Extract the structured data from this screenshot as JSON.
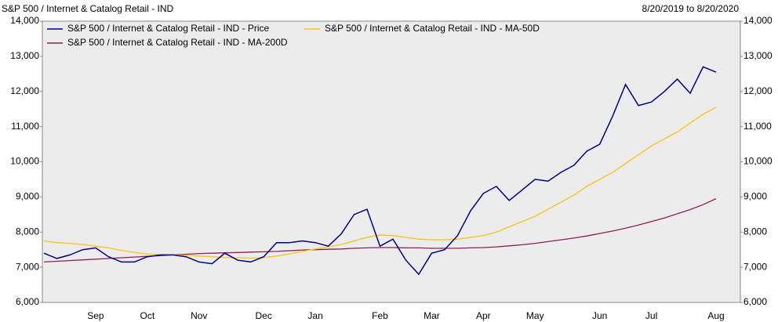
{
  "chart_data": {
    "type": "line",
    "title": "S&P 500 / Internet & Catalog Retail - IND",
    "subtitle": "8/20/2019 to 8/20/2020",
    "categories": [
      null,
      null,
      null,
      null,
      "Sep",
      null,
      null,
      null,
      "Oct",
      null,
      null,
      null,
      "Nov",
      null,
      null,
      null,
      null,
      "Dec",
      null,
      null,
      null,
      "Jan",
      null,
      null,
      null,
      null,
      "Feb",
      null,
      null,
      null,
      "Mar",
      null,
      null,
      null,
      "Apr",
      null,
      null,
      null,
      "May",
      null,
      null,
      null,
      null,
      "Jun",
      null,
      null,
      null,
      "Jul",
      null,
      null,
      null,
      null,
      "Aug"
    ],
    "series": [
      {
        "name": "S&P 500 / Internet & Catalog Retail - IND - Price",
        "color": "#000080",
        "values": [
          7400,
          7250,
          7350,
          7500,
          7550,
          7300,
          7150,
          7150,
          7300,
          7350,
          7350,
          7300,
          7150,
          7100,
          7400,
          7200,
          7150,
          7300,
          7700,
          7700,
          7750,
          7700,
          7600,
          7950,
          8500,
          8650,
          7600,
          7800,
          7200,
          6800,
          7400,
          7500,
          7900,
          8600,
          9100,
          9300,
          8900,
          9200,
          9500,
          9450,
          9700,
          9900,
          10300,
          10500,
          11300,
          12200,
          11600,
          11700,
          12000,
          12350,
          11950,
          12700,
          12550
        ]
      },
      {
        "name": "S&P 500 / Internet & Catalog Retail - IND - MA-50D",
        "color": "#f5c518",
        "values": [
          7750,
          7700,
          7680,
          7650,
          7600,
          7550,
          7480,
          7420,
          7380,
          7360,
          7350,
          7340,
          7320,
          7300,
          7280,
          7270,
          7260,
          7280,
          7320,
          7380,
          7450,
          7520,
          7580,
          7650,
          7750,
          7850,
          7920,
          7900,
          7850,
          7800,
          7780,
          7780,
          7800,
          7850,
          7900,
          8000,
          8150,
          8300,
          8450,
          8650,
          8850,
          9050,
          9300,
          9500,
          9700,
          9950,
          10200,
          10450,
          10650,
          10850,
          11100,
          11350,
          11550
        ]
      },
      {
        "name": "S&P 500 / Internet & Catalog Retail - IND - MA-200D",
        "color": "#8b2252",
        "values": [
          7150,
          7170,
          7190,
          7210,
          7230,
          7250,
          7270,
          7290,
          7310,
          7330,
          7350,
          7370,
          7390,
          7400,
          7410,
          7420,
          7430,
          7440,
          7450,
          7470,
          7490,
          7500,
          7510,
          7520,
          7540,
          7550,
          7560,
          7560,
          7550,
          7550,
          7540,
          7540,
          7540,
          7550,
          7560,
          7580,
          7610,
          7640,
          7680,
          7730,
          7780,
          7830,
          7890,
          7960,
          8030,
          8110,
          8200,
          8300,
          8400,
          8520,
          8640,
          8780,
          8950
        ]
      }
    ],
    "ylim": [
      6000,
      14000
    ],
    "yticks": [
      {
        "value": 6000,
        "label": "6,000"
      },
      {
        "value": 7000,
        "label": "7,000"
      },
      {
        "value": 8000,
        "label": "8,000"
      },
      {
        "value": 9000,
        "label": "9,000"
      },
      {
        "value": 10000,
        "label": "10,000"
      },
      {
        "value": 11000,
        "label": "11,000"
      },
      {
        "value": 12000,
        "label": "12,000"
      },
      {
        "value": 13000,
        "label": "13,000"
      },
      {
        "value": 14000,
        "label": "14,000"
      }
    ],
    "grid": false
  }
}
